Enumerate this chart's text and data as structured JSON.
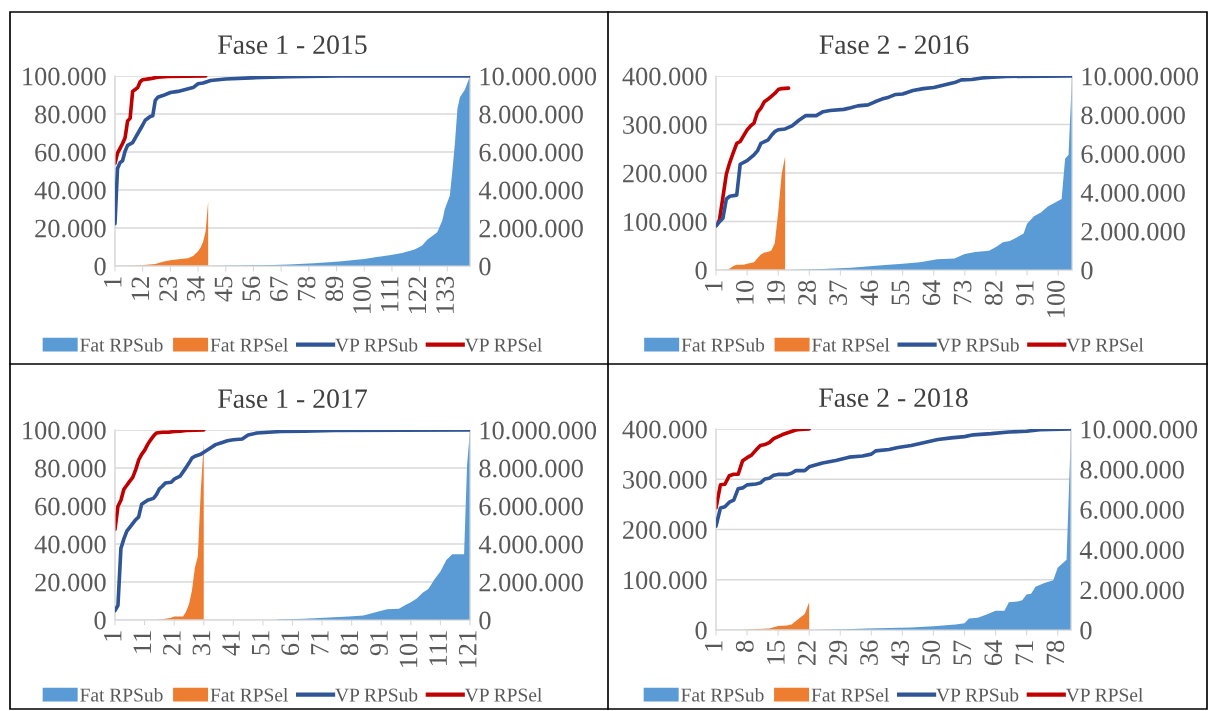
{
  "chart_data": [
    {
      "type": "area",
      "title": "Fase 1 - 2015",
      "xlim": [
        1,
        142
      ],
      "xticks": [
        1,
        12,
        23,
        34,
        45,
        56,
        67,
        78,
        89,
        100,
        111,
        122,
        133
      ],
      "ylim": [
        0,
        100000
      ],
      "yticks": [
        {
          "value": 0,
          "label": "0"
        },
        {
          "value": 20000,
          "label": "20.000"
        },
        {
          "value": 40000,
          "label": "40.000"
        },
        {
          "value": 60000,
          "label": "60.000"
        },
        {
          "value": 80000,
          "label": "80.000"
        },
        {
          "value": 100000,
          "label": "100.000"
        }
      ],
      "y2lim": [
        0,
        10000000
      ],
      "y2ticks": [
        {
          "value": 0,
          "label": "0"
        },
        {
          "value": 2000000,
          "label": "2.000.000"
        },
        {
          "value": 4000000,
          "label": "4.000.000"
        },
        {
          "value": 6000000,
          "label": "6.000.000"
        },
        {
          "value": 8000000,
          "label": "8.000.000"
        },
        {
          "value": 10000000,
          "label": "10.000.000"
        }
      ],
      "grid": "y",
      "legend": "bottom",
      "series": [
        {
          "name": "Fat RPSub",
          "type": "area",
          "axis": "y2",
          "color": "#5b9bd5",
          "x": [
            38,
            60,
            70,
            80,
            90,
            100,
            105,
            110,
            115,
            120,
            123,
            125,
            127,
            129,
            131,
            132,
            134,
            135,
            136,
            137,
            138,
            140,
            142
          ],
          "values": [
            0,
            40000,
            80000,
            140000,
            240000,
            370000,
            470000,
            570000,
            690000,
            870000,
            1080000,
            1380000,
            1580000,
            1780000,
            2390000,
            3000000,
            3710000,
            5030000,
            6450000,
            8280000,
            8880000,
            9290000,
            10000000
          ]
        },
        {
          "name": "Fat RPSel",
          "type": "area",
          "color": "#ed7d31",
          "x": [
            1,
            10,
            17,
            20,
            23,
            27,
            30,
            32,
            34,
            35,
            36,
            37,
            38
          ],
          "values": [
            0,
            200,
            1000,
            2200,
            3000,
            3700,
            4100,
            5300,
            7700,
            9700,
            12800,
            18300,
            34100
          ]
        },
        {
          "name": "VP RPSub",
          "type": "line",
          "axis": "y2",
          "color": "#2f5597",
          "x": [
            1,
            2,
            3,
            4,
            5,
            6,
            8,
            10,
            12,
            13,
            15,
            16,
            17,
            18,
            20,
            23,
            26,
            29,
            32,
            34,
            36,
            39,
            45,
            55,
            70,
            90,
            142
          ],
          "values": [
            2230000,
            5130000,
            5440000,
            5540000,
            6040000,
            6350000,
            6490000,
            6960000,
            7420000,
            7670000,
            7870000,
            7910000,
            8720000,
            8880000,
            8970000,
            9130000,
            9190000,
            9290000,
            9390000,
            9590000,
            9630000,
            9760000,
            9840000,
            9900000,
            9960000,
            10000000,
            10000000
          ]
        },
        {
          "name": "VP RPSel",
          "type": "line",
          "color": "#c00000",
          "x": [
            1,
            2,
            3,
            4,
            5,
            6,
            7,
            8,
            9,
            10,
            11,
            12,
            15,
            18,
            22,
            37
          ],
          "values": [
            54000,
            59400,
            61900,
            64500,
            67500,
            76300,
            77700,
            91900,
            92900,
            93900,
            97000,
            98000,
            98600,
            99400,
            99800,
            100000
          ]
        }
      ]
    },
    {
      "type": "area",
      "title": "Fase 2 - 2016",
      "xlim": [
        1,
        104
      ],
      "xticks": [
        1,
        10,
        19,
        28,
        37,
        46,
        55,
        64,
        73,
        82,
        91,
        100
      ],
      "ylim": [
        0,
        400000
      ],
      "yticks": [
        {
          "value": 0,
          "label": "0"
        },
        {
          "value": 100000,
          "label": "100.000"
        },
        {
          "value": 200000,
          "label": "200.000"
        },
        {
          "value": 300000,
          "label": "300.000"
        },
        {
          "value": 400000,
          "label": "400.000"
        }
      ],
      "y2lim": [
        0,
        10000000
      ],
      "y2ticks": [
        {
          "value": 0,
          "label": "0"
        },
        {
          "value": 2000000,
          "label": "2.000.000"
        },
        {
          "value": 4000000,
          "label": "4.000.000"
        },
        {
          "value": 6000000,
          "label": "6.000.000"
        },
        {
          "value": 8000000,
          "label": "8.000.000"
        },
        {
          "value": 10000000,
          "label": "10.000.000"
        }
      ],
      "grid": "y",
      "legend": "bottom",
      "series": [
        {
          "name": "Fat RPSub",
          "type": "area",
          "axis": "y2",
          "color": "#5b9bd5",
          "x": [
            22,
            30,
            40,
            50,
            55,
            60,
            65,
            70,
            73,
            76,
            80,
            82,
            84,
            86,
            88,
            90,
            91,
            93,
            95,
            97,
            99,
            101,
            102,
            103,
            104
          ],
          "values": [
            0,
            40000,
            120000,
            260000,
            320000,
            400000,
            550000,
            590000,
            830000,
            930000,
            990000,
            1190000,
            1430000,
            1490000,
            1680000,
            1880000,
            2380000,
            2770000,
            2970000,
            3270000,
            3470000,
            3660000,
            5740000,
            5940000,
            10000000
          ]
        },
        {
          "name": "Fat RPSel",
          "type": "area",
          "color": "#ed7d31",
          "x": [
            1,
            4,
            5,
            6,
            7,
            9,
            10,
            12,
            13,
            14,
            15,
            16,
            17,
            18,
            19,
            20,
            21
          ],
          "values": [
            0,
            0,
            3000,
            8000,
            11000,
            11000,
            13000,
            16000,
            24000,
            32000,
            36000,
            37000,
            40000,
            55000,
            119000,
            198000,
            234000
          ]
        },
        {
          "name": "VP RPSub",
          "type": "line",
          "axis": "y2",
          "color": "#2f5597",
          "x": [
            1,
            2,
            3,
            4,
            5,
            7,
            8,
            10,
            12,
            13,
            14,
            16,
            17,
            18,
            19,
            21,
            23,
            25,
            27,
            30,
            32,
            34,
            38,
            40,
            42,
            45,
            47,
            49,
            51,
            53,
            55,
            58,
            61,
            64,
            67,
            70,
            72,
            75,
            78,
            81,
            85,
            104
          ],
          "values": [
            2280000,
            2480000,
            2670000,
            3660000,
            3800000,
            3860000,
            5450000,
            5640000,
            5940000,
            6140000,
            6530000,
            6690000,
            6930000,
            7130000,
            7230000,
            7270000,
            7430000,
            7720000,
            7960000,
            7960000,
            8160000,
            8220000,
            8280000,
            8360000,
            8460000,
            8510000,
            8670000,
            8810000,
            8910000,
            9050000,
            9070000,
            9250000,
            9350000,
            9410000,
            9540000,
            9660000,
            9800000,
            9820000,
            9900000,
            9940000,
            9980000,
            10000000
          ]
        },
        {
          "name": "VP RPSel",
          "type": "line",
          "color": "#c00000",
          "x": [
            1,
            2,
            3,
            4,
            5,
            6,
            7,
            8,
            9,
            10,
            11,
            12,
            13,
            14,
            15,
            16,
            17,
            18,
            19,
            20,
            22
          ],
          "values": [
            91000,
            103000,
            150000,
            198000,
            222000,
            242000,
            261000,
            265000,
            277000,
            289000,
            297000,
            303000,
            325000,
            334000,
            347000,
            352000,
            358000,
            364000,
            372000,
            374000,
            375000
          ]
        }
      ]
    },
    {
      "type": "area",
      "title": "Fase 1 - 2017",
      "xlim": [
        1,
        121
      ],
      "xticks": [
        1,
        11,
        21,
        31,
        41,
        51,
        61,
        71,
        81,
        91,
        101,
        111,
        121
      ],
      "ylim": [
        0,
        100000
      ],
      "yticks": [
        {
          "value": 0,
          "label": "0"
        },
        {
          "value": 20000,
          "label": "20.000"
        },
        {
          "value": 40000,
          "label": "40.000"
        },
        {
          "value": 60000,
          "label": "60.000"
        },
        {
          "value": 80000,
          "label": "80.000"
        },
        {
          "value": 100000,
          "label": "100.000"
        }
      ],
      "y2lim": [
        0,
        10000000
      ],
      "y2ticks": [
        {
          "value": 0,
          "label": "0"
        },
        {
          "value": 2000000,
          "label": "2.000.000"
        },
        {
          "value": 4000000,
          "label": "4.000.000"
        },
        {
          "value": 6000000,
          "label": "6.000.000"
        },
        {
          "value": 8000000,
          "label": "8.000.000"
        },
        {
          "value": 10000000,
          "label": "10.000.000"
        }
      ],
      "grid": "y",
      "legend": "bottom",
      "series": [
        {
          "name": "Fat RPSub",
          "type": "area",
          "axis": "y2",
          "color": "#5b9bd5",
          "x": [
            56,
            65,
            70,
            80,
            85,
            90,
            93,
            97,
            99,
            101,
            103,
            105,
            107,
            109,
            111,
            113,
            115,
            119,
            120,
            121
          ],
          "values": [
            20000,
            60000,
            100000,
            180000,
            240000,
            450000,
            570000,
            590000,
            770000,
            930000,
            1130000,
            1440000,
            1640000,
            2150000,
            2550000,
            3160000,
            3460000,
            3460000,
            8120000,
            10000000
          ]
        },
        {
          "name": "Fat RPSel",
          "type": "area",
          "color": "#ed7d31",
          "x": [
            1,
            15,
            16,
            18,
            20,
            21,
            24,
            25,
            26,
            27,
            28,
            29,
            30,
            31
          ],
          "values": [
            0,
            0,
            200,
            600,
            1200,
            1800,
            1800,
            4300,
            8300,
            15400,
            27500,
            33600,
            68000,
            93300
          ]
        },
        {
          "name": "VP RPSub",
          "type": "line",
          "axis": "y2",
          "color": "#2f5597",
          "x": [
            1,
            2,
            3,
            4,
            5,
            6,
            8,
            9,
            10,
            12,
            14,
            15,
            16,
            17,
            18,
            20,
            21,
            23,
            25,
            26,
            27,
            28,
            30,
            31,
            33,
            35,
            37,
            39,
            41,
            44,
            46,
            49,
            53,
            57,
            65,
            75,
            121
          ],
          "values": [
            490000,
            770000,
            3770000,
            4270000,
            4680000,
            4880000,
            5280000,
            5430000,
            6090000,
            6300000,
            6400000,
            6600000,
            6900000,
            7040000,
            7210000,
            7250000,
            7410000,
            7570000,
            8020000,
            8260000,
            8520000,
            8620000,
            8720000,
            8830000,
            9030000,
            9230000,
            9330000,
            9430000,
            9490000,
            9530000,
            9740000,
            9840000,
            9880000,
            9920000,
            9940000,
            9980000,
            10000000
          ]
        },
        {
          "name": "VP RPSel",
          "type": "line",
          "color": "#c00000",
          "x": [
            1,
            2,
            3,
            4,
            5,
            6,
            7,
            8,
            9,
            10,
            11,
            12,
            13,
            14,
            15,
            17,
            19,
            21,
            23,
            25,
            31
          ],
          "values": [
            47800,
            59900,
            63000,
            68800,
            70900,
            73100,
            75100,
            79100,
            84200,
            87200,
            89300,
            92300,
            94700,
            96800,
            98400,
            98800,
            98800,
            99200,
            99400,
            99800,
            100000
          ]
        }
      ]
    },
    {
      "type": "area",
      "title": "Fase 2 - 2018",
      "xlim": [
        1,
        81
      ],
      "xticks": [
        1,
        8,
        15,
        22,
        29,
        36,
        43,
        50,
        57,
        64,
        71,
        78
      ],
      "ylim": [
        0,
        400000
      ],
      "yticks": [
        {
          "value": 0,
          "label": "0"
        },
        {
          "value": 100000,
          "label": "100.000"
        },
        {
          "value": 200000,
          "label": "200.000"
        },
        {
          "value": 300000,
          "label": "300.000"
        },
        {
          "value": 400000,
          "label": "400.000"
        }
      ],
      "y2lim": [
        0,
        10000000
      ],
      "y2ticks": [
        {
          "value": 0,
          "label": "0"
        },
        {
          "value": 2000000,
          "label": "2.000.000"
        },
        {
          "value": 4000000,
          "label": "4.000.000"
        },
        {
          "value": 6000000,
          "label": "6.000.000"
        },
        {
          "value": 8000000,
          "label": "8.000.000"
        },
        {
          "value": 10000000,
          "label": "10.000.000"
        }
      ],
      "grid": "y",
      "legend": "bottom",
      "series": [
        {
          "name": "Fat RPSub",
          "type": "area",
          "axis": "y2",
          "color": "#5b9bd5",
          "x": [
            23,
            30,
            35,
            45,
            50,
            55,
            57,
            58,
            60,
            62,
            64,
            66,
            67,
            69,
            70,
            71,
            72,
            73,
            75,
            77,
            78,
            79,
            80,
            81
          ],
          "values": [
            0,
            40000,
            80000,
            130000,
            190000,
            270000,
            330000,
            570000,
            610000,
            770000,
            960000,
            960000,
            1380000,
            1420000,
            1480000,
            1760000,
            1800000,
            2150000,
            2340000,
            2470000,
            3100000,
            3300000,
            3490000,
            10000000
          ]
        },
        {
          "name": "Fat RPSel",
          "type": "area",
          "color": "#ed7d31",
          "x": [
            1,
            7,
            8,
            10,
            13,
            15,
            17,
            18,
            19,
            20,
            21,
            22
          ],
          "values": [
            0,
            0,
            1000,
            2000,
            3000,
            8000,
            9000,
            11000,
            18000,
            25000,
            32000,
            55000
          ]
        },
        {
          "name": "VP RPSub",
          "type": "line",
          "axis": "y2",
          "color": "#2f5597",
          "x": [
            1,
            2,
            3,
            4,
            5,
            6,
            7,
            8,
            10,
            11,
            12,
            13,
            14,
            15,
            17,
            18,
            19,
            21,
            22,
            23,
            25,
            28,
            31,
            34,
            36,
            37,
            40,
            42,
            45,
            48,
            51,
            54,
            57,
            59,
            63,
            67,
            71,
            74,
            81
          ],
          "values": [
            5170000,
            6070000,
            6130000,
            6360000,
            6460000,
            7030000,
            7070000,
            7220000,
            7260000,
            7320000,
            7510000,
            7550000,
            7700000,
            7740000,
            7740000,
            7800000,
            7930000,
            7930000,
            8120000,
            8180000,
            8310000,
            8430000,
            8600000,
            8660000,
            8750000,
            8910000,
            8980000,
            9080000,
            9180000,
            9330000,
            9480000,
            9560000,
            9620000,
            9710000,
            9770000,
            9850000,
            9890000,
            9960000,
            10000000
          ]
        },
        {
          "name": "VP RPSel",
          "type": "line",
          "color": "#c00000",
          "x": [
            1,
            2,
            3,
            4,
            5,
            6,
            7,
            8,
            9,
            10,
            11,
            12,
            13,
            14,
            15,
            16,
            17,
            18,
            19,
            20,
            22
          ],
          "values": [
            243000,
            289000,
            290000,
            307000,
            310000,
            310000,
            337000,
            343000,
            348000,
            358000,
            367000,
            369000,
            373000,
            381000,
            385000,
            389000,
            392000,
            395000,
            398000,
            399000,
            400000
          ]
        }
      ]
    }
  ]
}
